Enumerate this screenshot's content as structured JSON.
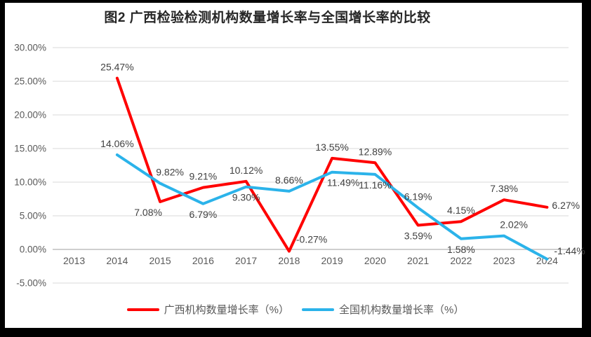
{
  "window": {
    "frame_color": "#000000",
    "canvas_background": "#FFFFFF"
  },
  "chart_data": {
    "type": "line",
    "title": "图2 广西检验检测机构数量增长率与全国增长率的比较",
    "categories": [
      "2013",
      "2014",
      "2015",
      "2016",
      "2017",
      "2018",
      "2019",
      "2020",
      "2021",
      "2022",
      "2023",
      "2024"
    ],
    "y_axis": {
      "ticks": [
        {
          "label": "30.00%",
          "value": 30
        },
        {
          "label": "25.00%",
          "value": 25
        },
        {
          "label": "20.00%",
          "value": 20
        },
        {
          "label": "15.00%",
          "value": 15
        },
        {
          "label": "10.00%",
          "value": 10
        },
        {
          "label": "5.00%",
          "value": 5
        },
        {
          "label": "0.00%",
          "value": 0
        },
        {
          "label": "-5.00%",
          "value": -5
        }
      ],
      "range": [
        -5,
        30
      ]
    },
    "grid": true,
    "legend_position": "bottom",
    "colors": {
      "grid": "#D9D9D9",
      "axis_line": "#BFBFBF",
      "axis_text": "#595959",
      "label_text": "#404040"
    },
    "series": [
      {
        "name": "广西机构数量增长率（%）",
        "color": "#FF0000",
        "values": [
          null,
          25.47,
          7.08,
          9.21,
          10.12,
          -0.27,
          13.55,
          12.89,
          3.59,
          4.15,
          7.38,
          6.27
        ],
        "labels": [
          null,
          "25.47%",
          "7.08%",
          "9.21%",
          "10.12%",
          "-0.27%",
          "13.55%",
          "12.89%",
          "3.59%",
          "4.15%",
          "7.38%",
          "6.27%"
        ],
        "label_placements": [
          null,
          "above",
          "below-left",
          "above",
          "above",
          "right-up",
          "above",
          "above",
          "below",
          "above",
          "above",
          "right"
        ]
      },
      {
        "name": "全国机构数量增长率（%）",
        "color": "#2BB3EA",
        "values": [
          null,
          14.06,
          9.82,
          6.79,
          9.3,
          8.66,
          11.49,
          11.16,
          6.19,
          1.58,
          2.02,
          -1.44
        ],
        "labels": [
          null,
          "14.06%",
          "9.82%",
          "6.79%",
          "9.30%",
          "8.66%",
          "11.49%",
          "11.16%",
          "6.19%",
          "1.58%",
          "2.02%",
          "-1.44%"
        ],
        "label_placements": [
          null,
          "above",
          "above-right",
          "below",
          "below",
          "above",
          "below-right",
          "below",
          "above",
          "below",
          "above-right",
          "right-mid"
        ]
      }
    ]
  }
}
